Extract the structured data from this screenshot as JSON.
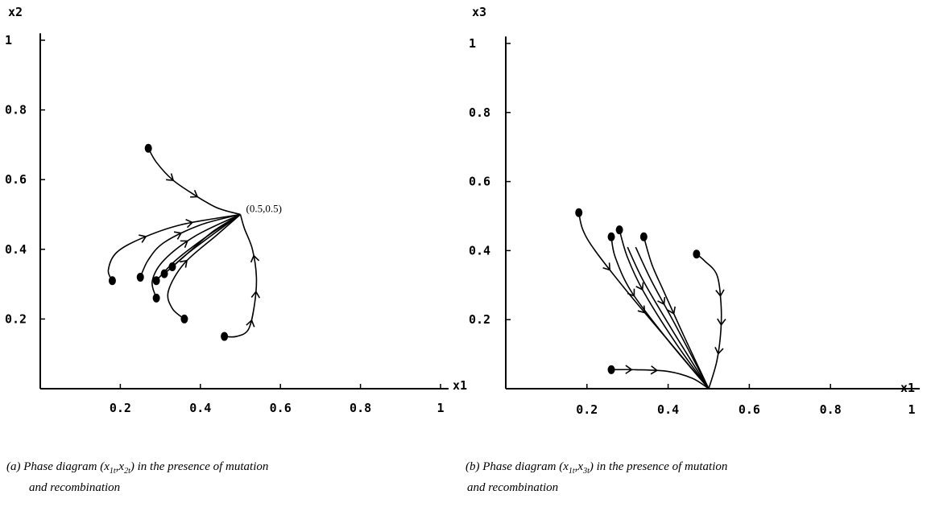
{
  "chart_data": [
    {
      "type": "line",
      "panel": "a",
      "xlabel": "x1",
      "ylabel": "x2",
      "xlim": [
        0,
        1
      ],
      "ylim": [
        0,
        1
      ],
      "x_ticks": [
        "0.2",
        "0.4",
        "0.6",
        "0.8",
        "1"
      ],
      "y_ticks": [
        "0.2",
        "0.4",
        "0.6",
        "0.8",
        "1"
      ],
      "annotation": "(0.5,0.5)",
      "equilibrium": [
        0.5,
        0.5
      ],
      "series": [
        {
          "points": [
            [
              0.27,
              0.69
            ],
            [
              0.29,
              0.65
            ],
            [
              0.33,
              0.6
            ],
            [
              0.38,
              0.56
            ],
            [
              0.44,
              0.52
            ],
            [
              0.5,
              0.5
            ]
          ],
          "arrows": [
            0.35,
            0.6
          ],
          "start_marker": true
        },
        {
          "points": [
            [
              0.18,
              0.31
            ],
            [
              0.17,
              0.34
            ],
            [
              0.19,
              0.39
            ],
            [
              0.25,
              0.43
            ],
            [
              0.35,
              0.47
            ],
            [
              0.5,
              0.5
            ]
          ],
          "arrows": [
            0.4,
            0.7
          ],
          "start_marker": true
        },
        {
          "points": [
            [
              0.25,
              0.32
            ],
            [
              0.27,
              0.37
            ],
            [
              0.31,
              0.42
            ],
            [
              0.4,
              0.47
            ],
            [
              0.5,
              0.5
            ]
          ],
          "arrows": [
            0.5
          ],
          "start_marker": true
        },
        {
          "points": [
            [
              0.29,
              0.26
            ],
            [
              0.28,
              0.31
            ],
            [
              0.31,
              0.37
            ],
            [
              0.39,
              0.44
            ],
            [
              0.5,
              0.5
            ]
          ],
          "arrows": [
            0.55
          ],
          "start_marker": true
        },
        {
          "points": [
            [
              0.29,
              0.31
            ],
            [
              0.34,
              0.37
            ],
            [
              0.42,
              0.44
            ],
            [
              0.5,
              0.5
            ]
          ],
          "arrows": [],
          "start_marker": true
        },
        {
          "points": [
            [
              0.31,
              0.33
            ],
            [
              0.36,
              0.38
            ],
            [
              0.43,
              0.45
            ],
            [
              0.5,
              0.5
            ]
          ],
          "arrows": [],
          "start_marker": true
        },
        {
          "points": [
            [
              0.33,
              0.35
            ],
            [
              0.37,
              0.39
            ],
            [
              0.44,
              0.45
            ],
            [
              0.5,
              0.5
            ]
          ],
          "arrows": [],
          "start_marker": true
        },
        {
          "points": [
            [
              0.36,
              0.2
            ],
            [
              0.33,
              0.23
            ],
            [
              0.32,
              0.28
            ],
            [
              0.36,
              0.36
            ],
            [
              0.44,
              0.44
            ],
            [
              0.5,
              0.5
            ]
          ],
          "arrows": [
            0.5
          ],
          "start_marker": true
        },
        {
          "points": [
            [
              0.46,
              0.15
            ],
            [
              0.49,
              0.15
            ],
            [
              0.52,
              0.17
            ],
            [
              0.535,
              0.24
            ],
            [
              0.54,
              0.32
            ],
            [
              0.53,
              0.4
            ],
            [
              0.51,
              0.46
            ],
            [
              0.5,
              0.5
            ]
          ],
          "arrows": [
            0.25,
            0.45,
            0.7
          ],
          "start_marker": true
        }
      ]
    },
    {
      "type": "line",
      "panel": "b",
      "xlabel": "x1",
      "ylabel": "x3",
      "xlim": [
        0,
        1
      ],
      "ylim": [
        0,
        1
      ],
      "x_ticks": [
        "0.2",
        "0.4",
        "0.6",
        "0.8",
        "1"
      ],
      "y_ticks": [
        "0.2",
        "0.4",
        "0.6",
        "0.8",
        "1"
      ],
      "equilibrium": [
        0.5,
        0.0
      ],
      "series": [
        {
          "points": [
            [
              0.18,
              0.51
            ],
            [
              0.19,
              0.46
            ],
            [
              0.22,
              0.4
            ],
            [
              0.3,
              0.28
            ],
            [
              0.4,
              0.14
            ],
            [
              0.5,
              0.0
            ]
          ],
          "arrows": [
            0.3,
            0.55
          ],
          "start_marker": true
        },
        {
          "points": [
            [
              0.26,
              0.44
            ],
            [
              0.27,
              0.38
            ],
            [
              0.31,
              0.28
            ],
            [
              0.4,
              0.14
            ],
            [
              0.5,
              0.0
            ]
          ],
          "arrows": [
            0.35
          ],
          "start_marker": true
        },
        {
          "points": [
            [
              0.28,
              0.46
            ],
            [
              0.3,
              0.38
            ],
            [
              0.34,
              0.28
            ],
            [
              0.42,
              0.13
            ],
            [
              0.5,
              0.0
            ]
          ],
          "arrows": [
            0.35
          ],
          "start_marker": true
        },
        {
          "points": [
            [
              0.3,
              0.41
            ],
            [
              0.34,
              0.31
            ],
            [
              0.41,
              0.17
            ],
            [
              0.5,
              0.0
            ]
          ],
          "arrows": [],
          "start_marker": false
        },
        {
          "points": [
            [
              0.32,
              0.41
            ],
            [
              0.36,
              0.31
            ],
            [
              0.42,
              0.18
            ],
            [
              0.5,
              0.0
            ]
          ],
          "arrows": [
            0.4
          ],
          "start_marker": false
        },
        {
          "points": [
            [
              0.34,
              0.44
            ],
            [
              0.36,
              0.36
            ],
            [
              0.39,
              0.28
            ],
            [
              0.44,
              0.15
            ],
            [
              0.5,
              0.0
            ]
          ],
          "arrows": [
            0.5
          ],
          "start_marker": true
        },
        {
          "points": [
            [
              0.26,
              0.055
            ],
            [
              0.32,
              0.055
            ],
            [
              0.4,
              0.05
            ],
            [
              0.46,
              0.03
            ],
            [
              0.5,
              0.0
            ]
          ],
          "arrows": [
            0.2,
            0.45
          ],
          "start_marker": true
        },
        {
          "points": [
            [
              0.47,
              0.39
            ],
            [
              0.49,
              0.37
            ],
            [
              0.52,
              0.33
            ],
            [
              0.53,
              0.25
            ],
            [
              0.53,
              0.17
            ],
            [
              0.52,
              0.08
            ],
            [
              0.5,
              0.0
            ]
          ],
          "arrows": [
            0.35,
            0.55,
            0.75
          ],
          "start_marker": true
        }
      ]
    }
  ],
  "captions": {
    "a": {
      "line1_pre": "(a) Phase diagram (x",
      "sub1": "1t",
      "comma": ",x",
      "sub2": "2t",
      "line1_post": ") in the presence of mutation",
      "line2": "and recombination"
    },
    "b": {
      "line1_pre": "(b) Phase diagram (x",
      "sub1": "1t",
      "comma": ",x",
      "sub2": "3t",
      "line1_post": ") in the presence of  mutation",
      "line2": "and recombination"
    }
  }
}
